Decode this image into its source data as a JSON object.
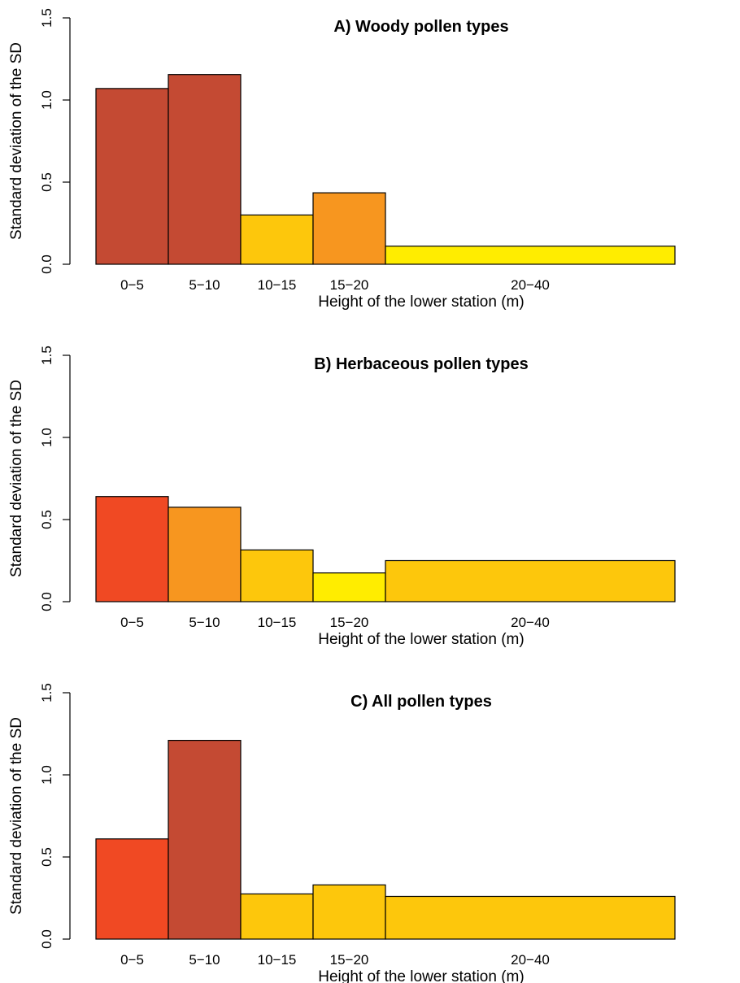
{
  "chart_data": [
    {
      "type": "bar",
      "title": "A) Woody pollen types",
      "xlabel": "Height of the lower station (m)",
      "ylabel": "Standard deviation of the SD",
      "ylim": [
        0,
        1.5
      ],
      "yticks": [
        "0.0",
        "0.5",
        "1.0",
        "1.5"
      ],
      "categories": [
        "0−5",
        "5−10",
        "10−15",
        "15−20",
        "20−40"
      ],
      "bin_edges": [
        0,
        5,
        10,
        15,
        20,
        40
      ],
      "values": [
        1.07,
        1.155,
        0.3,
        0.435,
        0.11
      ],
      "colors": [
        "#C44A33",
        "#C44A33",
        "#FDC70C",
        "#F7961F",
        "#FFED00"
      ]
    },
    {
      "type": "bar",
      "title": "B) Herbaceous pollen types",
      "xlabel": "Height of the lower station (m)",
      "ylabel": "Standard deviation of the SD",
      "ylim": [
        0,
        1.5
      ],
      "yticks": [
        "0.0",
        "0.5",
        "1.0",
        "1.5"
      ],
      "categories": [
        "0−5",
        "5−10",
        "10−15",
        "15−20",
        "20−40"
      ],
      "bin_edges": [
        0,
        5,
        10,
        15,
        20,
        40
      ],
      "values": [
        0.64,
        0.575,
        0.315,
        0.175,
        0.25
      ],
      "colors": [
        "#F04923",
        "#F7961F",
        "#FDC70C",
        "#FFED00",
        "#FDC70C"
      ]
    },
    {
      "type": "bar",
      "title": "C) All pollen types",
      "xlabel": "Height of the lower station (m)",
      "ylabel": "Standard deviation of the SD",
      "ylim": [
        0,
        1.5
      ],
      "yticks": [
        "0.0",
        "0.5",
        "1.0",
        "1.5"
      ],
      "categories": [
        "0−5",
        "5−10",
        "10−15",
        "15−20",
        "20−40"
      ],
      "bin_edges": [
        0,
        5,
        10,
        15,
        20,
        40
      ],
      "values": [
        0.61,
        1.21,
        0.275,
        0.33,
        0.26
      ],
      "colors": [
        "#F04923",
        "#C44A33",
        "#FDC70C",
        "#FDC70C",
        "#FDC70C"
      ]
    }
  ]
}
